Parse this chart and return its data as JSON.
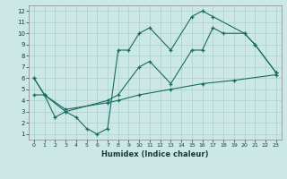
{
  "xlabel": "Humidex (Indice chaleur)",
  "background_color": "#cce8e6",
  "grid_color": "#aacfcd",
  "line_color": "#1a6b5e",
  "xlim": [
    -0.5,
    23.5
  ],
  "ylim": [
    0.5,
    12.5
  ],
  "xticks": [
    0,
    1,
    2,
    3,
    4,
    5,
    6,
    7,
    8,
    9,
    10,
    11,
    12,
    13,
    14,
    15,
    16,
    17,
    18,
    19,
    20,
    21,
    22,
    23
  ],
  "yticks": [
    1,
    2,
    3,
    4,
    5,
    6,
    7,
    8,
    9,
    10,
    11,
    12
  ],
  "series": [
    {
      "x": [
        0,
        1,
        2,
        3,
        4,
        5,
        6,
        7,
        8,
        9,
        10,
        11,
        13,
        15,
        16,
        17,
        20,
        21,
        23
      ],
      "y": [
        6.0,
        4.5,
        2.5,
        3.0,
        2.5,
        1.5,
        1.0,
        1.5,
        8.5,
        8.5,
        10.0,
        10.5,
        8.5,
        11.5,
        12.0,
        11.5,
        10.0,
        9.0,
        6.5
      ]
    },
    {
      "x": [
        0,
        1,
        3,
        7,
        8,
        10,
        11,
        13,
        15,
        16,
        17,
        18,
        20,
        21,
        23
      ],
      "y": [
        6.0,
        4.5,
        3.0,
        4.0,
        4.5,
        7.0,
        7.5,
        5.5,
        8.5,
        8.5,
        10.5,
        10.0,
        10.0,
        9.0,
        6.5
      ]
    },
    {
      "x": [
        0,
        1,
        3,
        7,
        8,
        10,
        13,
        16,
        19,
        23
      ],
      "y": [
        4.5,
        4.5,
        3.2,
        3.8,
        4.0,
        4.5,
        5.0,
        5.5,
        5.8,
        6.3
      ]
    }
  ]
}
